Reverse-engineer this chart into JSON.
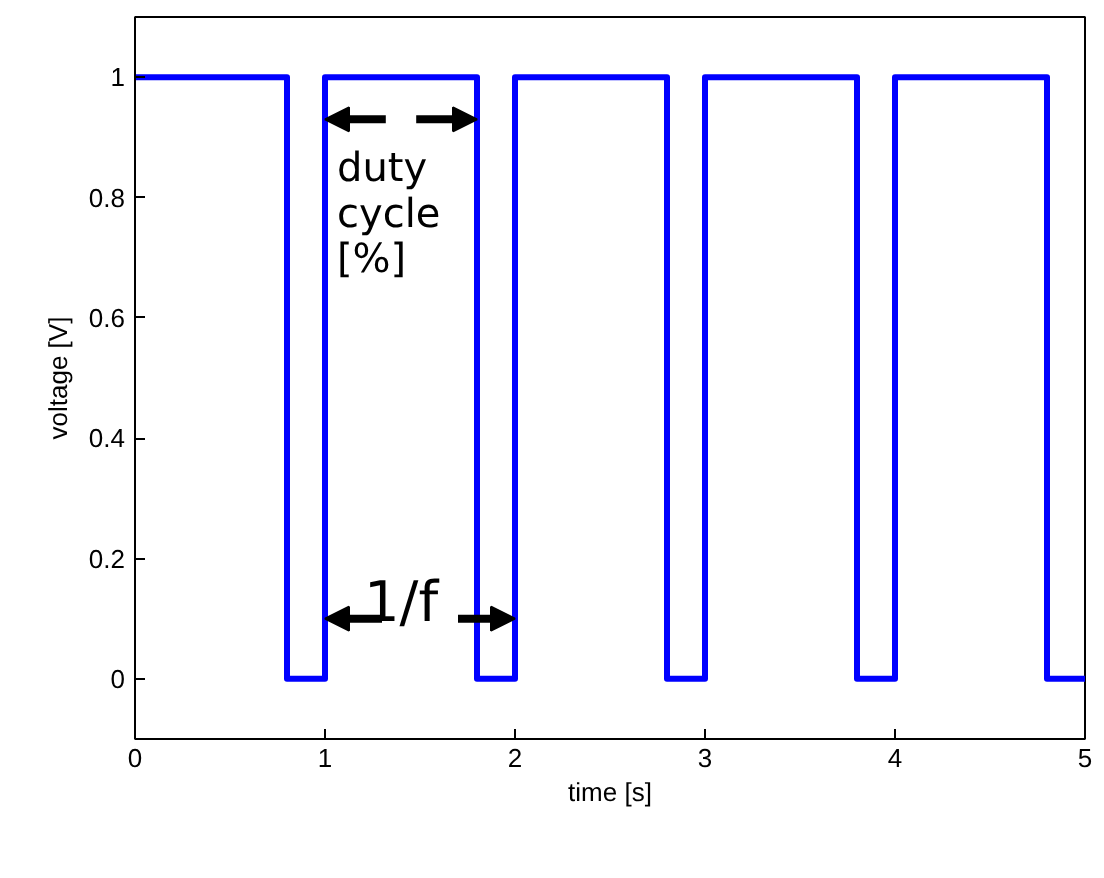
{
  "chart_data": {
    "type": "line",
    "xlabel": "time [s]",
    "ylabel": "voltage [V]",
    "x": [
      0,
      0.8,
      0.8,
      1,
      1,
      1.8,
      1.8,
      2,
      2,
      2.8,
      2.8,
      3,
      3,
      3.8,
      3.8,
      4,
      4,
      4.8,
      4.8,
      5
    ],
    "series": [
      {
        "color": "#0000ff",
        "values": [
          1,
          1,
          0,
          0,
          1,
          1,
          0,
          0,
          1,
          1,
          0,
          0,
          1,
          1,
          0,
          0,
          1,
          1,
          0,
          0
        ]
      }
    ],
    "xlim": [
      0,
      5
    ],
    "ylim": [
      -0.1,
      1.1
    ],
    "xticks": [
      0,
      1,
      2,
      3,
      4,
      5
    ],
    "yticks": [
      0,
      0.2,
      0.4,
      0.6,
      0.8,
      1
    ],
    "grid": false,
    "marker": "none",
    "line_style": "solid",
    "annotations": [
      "duty cycle [%]",
      "1/f"
    ]
  }
}
